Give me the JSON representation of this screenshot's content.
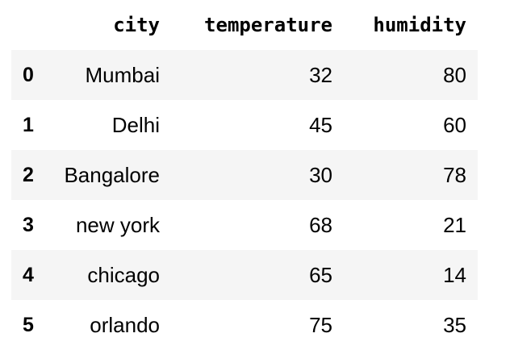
{
  "table": {
    "columns": [
      "city",
      "temperature",
      "humidity"
    ],
    "index": [
      "0",
      "1",
      "2",
      "3",
      "4",
      "5"
    ],
    "rows": [
      [
        "Mumbai",
        "32",
        "80"
      ],
      [
        "Delhi",
        "45",
        "60"
      ],
      [
        "Bangalore",
        "30",
        "78"
      ],
      [
        "new york",
        "68",
        "21"
      ],
      [
        "chicago",
        "65",
        "14"
      ],
      [
        "orlando",
        "75",
        "35"
      ]
    ],
    "stripe_color": "#f5f5f5"
  }
}
